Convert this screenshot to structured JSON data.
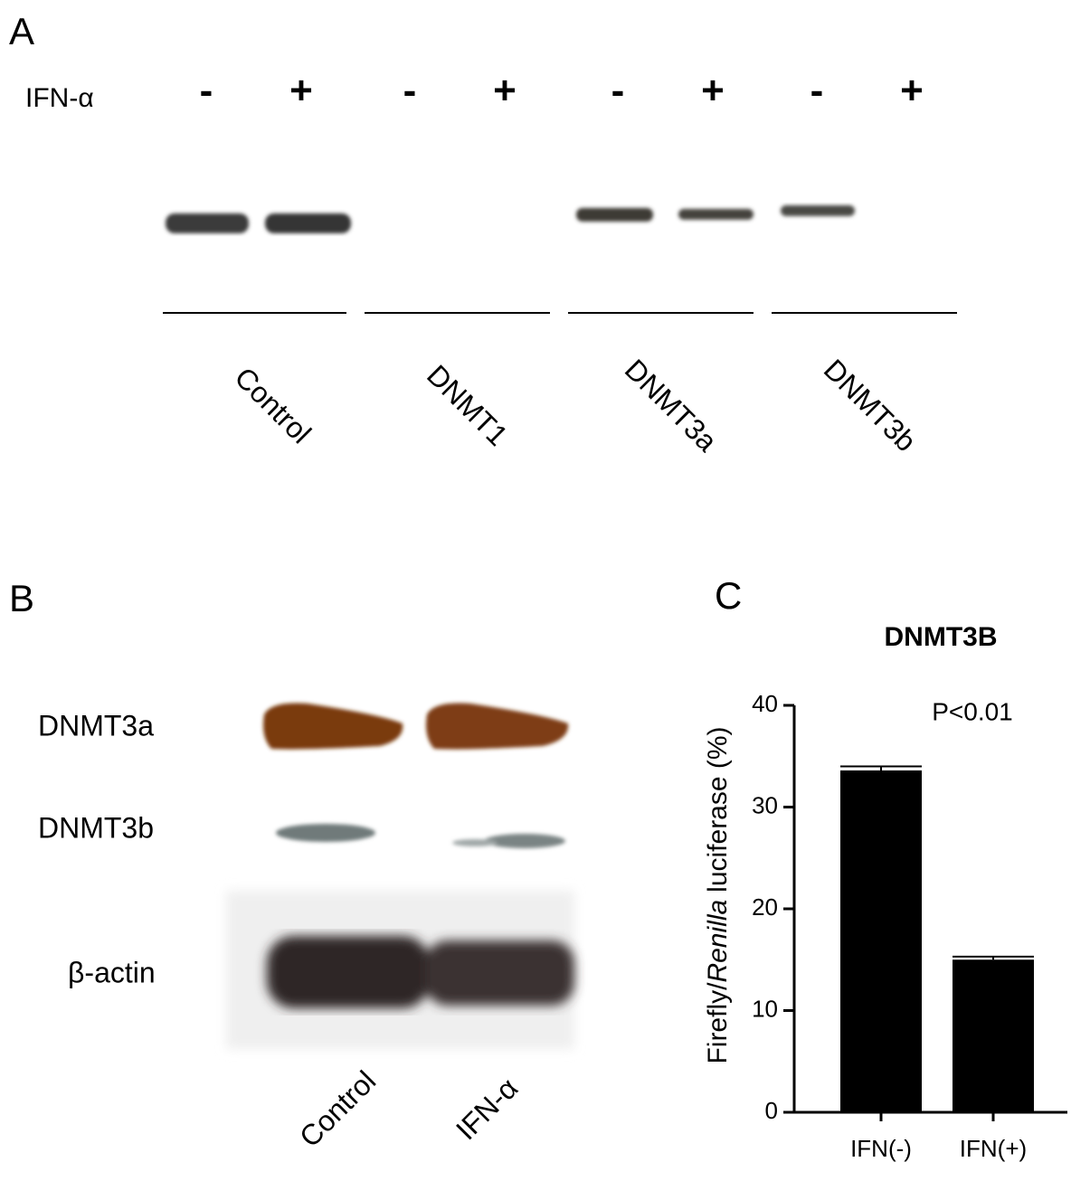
{
  "panel_a": {
    "label": "A",
    "treatment": "IFN-α",
    "signs": [
      "-",
      "+",
      "-",
      "+",
      "-",
      "+",
      "-",
      "+"
    ],
    "groups": [
      "Control",
      "DNMT1",
      "DNMT3a",
      "DNMT3b"
    ]
  },
  "panel_b": {
    "label": "B",
    "rows": [
      "DNMT3a",
      "DNMT3b",
      "β-actin"
    ],
    "columns": [
      "Control",
      "IFN-α"
    ]
  },
  "chart_data": {
    "type": "bar",
    "label": "C",
    "title": "DNMT3B",
    "y_label": [
      "Firefly/",
      "Renilla",
      "luciferase (%)"
    ],
    "annotation": "P<0.01",
    "categories": [
      "IFN(-)",
      "IFN(+)"
    ],
    "values": [
      33.6,
      15.0
    ],
    "errors": [
      0.4,
      0.3
    ],
    "color": "#000000",
    "ylim": [
      0,
      40
    ],
    "yticks": [
      0,
      10,
      20,
      30,
      40
    ]
  }
}
